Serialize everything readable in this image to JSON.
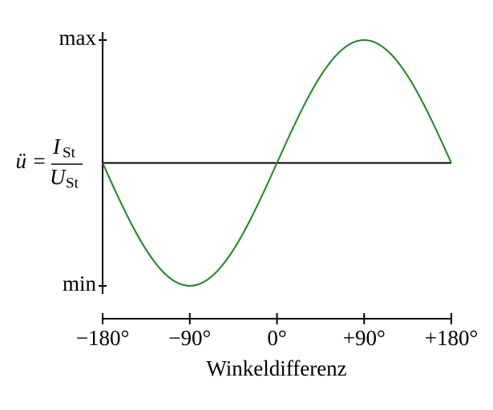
{
  "chart_data": {
    "type": "line",
    "x": [
      -180,
      -165,
      -150,
      -135,
      -120,
      -105,
      -90,
      -75,
      -60,
      -45,
      -30,
      -15,
      0,
      15,
      30,
      45,
      60,
      75,
      90,
      105,
      120,
      135,
      150,
      165,
      180
    ],
    "series": [
      {
        "color": "#1a8a1a",
        "values": [
          0,
          -0.259,
          -0.5,
          -0.707,
          -0.866,
          -0.966,
          -1,
          -0.966,
          -0.866,
          -0.707,
          -0.5,
          -0.259,
          0,
          0.259,
          0.5,
          0.707,
          0.866,
          0.966,
          1,
          0.966,
          0.866,
          0.707,
          0.5,
          0.259,
          0
        ]
      }
    ],
    "xlim": [
      -180,
      180
    ],
    "xticks": [
      {
        "value": -180,
        "label": "−180°"
      },
      {
        "value": -90,
        "label": "−90°"
      },
      {
        "value": 0,
        "label": "0°"
      },
      {
        "value": 90,
        "label": "+90°"
      },
      {
        "value": 180,
        "label": "+180°"
      }
    ],
    "ylim": [
      -1,
      1
    ],
    "yticks": [
      {
        "value": 1,
        "label": "max"
      },
      {
        "value": -1,
        "label": "min"
      }
    ],
    "xlabel": "Winkeldifferenz",
    "ylabel": {
      "lhs": "ü =",
      "numerator": "I",
      "numerator_sub": "St",
      "denominator": "U",
      "denominator_sub": "St"
    }
  }
}
